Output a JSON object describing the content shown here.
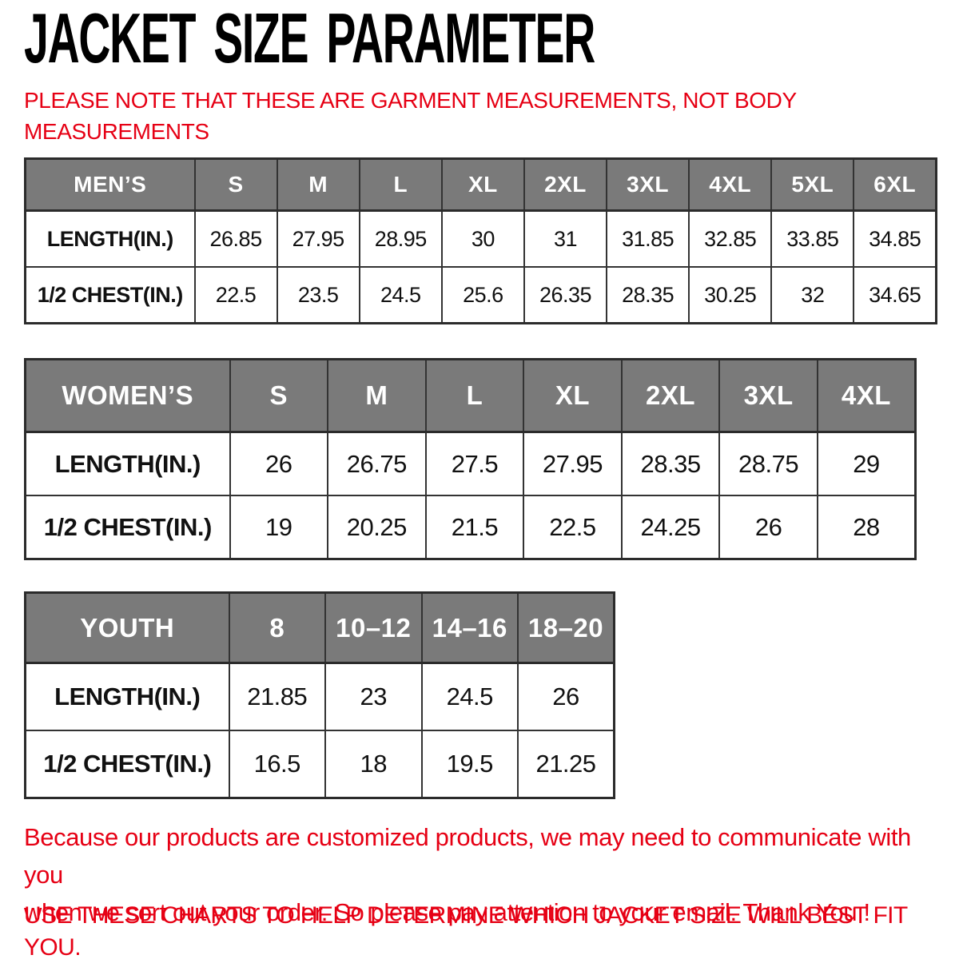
{
  "colors": {
    "header_bg": "#7a7a7a",
    "accent_red": "#e60014",
    "border": "#333333",
    "title_text": "#000000"
  },
  "page": {
    "title": "JACKET SIZE PARAMETER",
    "note_line1": "PLEASE NOTE THAT THESE ARE GARMENT MEASUREMENTS, NOT BODY",
    "note_line2": "MEASUREMENTS"
  },
  "tables": [
    {
      "name": "mens",
      "header": [
        "MEN’S",
        "S",
        "M",
        "L",
        "XL",
        "2XL",
        "3XL",
        "4XL",
        "5XL",
        "6XL"
      ],
      "rows": [
        {
          "label": "LENGTH(IN.)",
          "values": [
            "26.85",
            "27.95",
            "28.95",
            "30",
            "31",
            "31.85",
            "32.85",
            "33.85",
            "34.85"
          ]
        },
        {
          "label": "1/2 CHEST(IN.)",
          "values": [
            "22.5",
            "23.5",
            "24.5",
            "25.6",
            "26.35",
            "28.35",
            "30.25",
            "32",
            "34.65"
          ]
        }
      ]
    },
    {
      "name": "womens",
      "header": [
        "WOMEN’S",
        "S",
        "M",
        "L",
        "XL",
        "2XL",
        "3XL",
        "4XL"
      ],
      "rows": [
        {
          "label": "LENGTH(IN.)",
          "values": [
            "26",
            "26.75",
            "27.5",
            "27.95",
            "28.35",
            "28.75",
            "29"
          ]
        },
        {
          "label": "1/2 CHEST(IN.)",
          "values": [
            "19",
            "20.25",
            "21.5",
            "22.5",
            "24.25",
            "26",
            "28"
          ]
        }
      ]
    },
    {
      "name": "youth",
      "header": [
        "YOUTH",
        "8",
        "10–12",
        "14–16",
        "18–20"
      ],
      "rows": [
        {
          "label": "LENGTH(IN.)",
          "values": [
            "21.85",
            "23",
            "24.5",
            "26"
          ]
        },
        {
          "label": "1/2 CHEST(IN.)",
          "values": [
            "16.5",
            "18",
            "19.5",
            "21.25"
          ]
        }
      ]
    }
  ],
  "footer": {
    "message_line1": "Because our products are customized products, we may need to communicate with you",
    "message_line2": "when we sort out your order. So please pay attention to your email. Thank You !",
    "advice": "USE THESE CHARTS TO HELP DETERMINE WHICH JACKET SIZE WILL BEST FIT YOU."
  }
}
